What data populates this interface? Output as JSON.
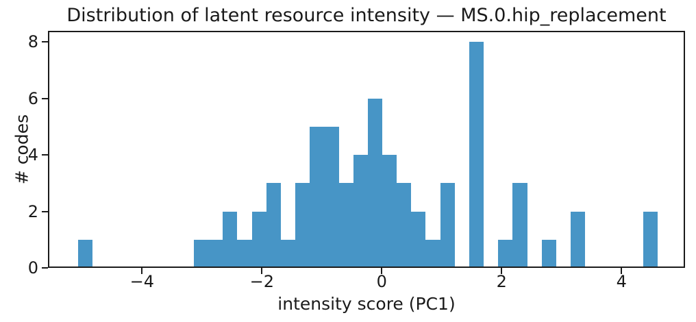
{
  "figure": {
    "background": "#ffffff",
    "text_color": "#1a1a1a"
  },
  "chart_data": {
    "type": "bar",
    "subtype": "histogram",
    "title": "Distribution of latent resource intensity — MS.0.hip_replacement",
    "xlabel": "intensity score (PC1)",
    "ylabel": "# codes",
    "bar_color": "#4795c6",
    "axis_color": "#1a1a1a",
    "grid": false,
    "legend": false,
    "xlim": [
      -5.57,
      5.06
    ],
    "ylim": [
      0,
      8.4
    ],
    "bin_start": -5.07,
    "bin_width": 0.2418,
    "counts": [
      1,
      0,
      0,
      0,
      0,
      0,
      0,
      0,
      1,
      1,
      2,
      1,
      2,
      3,
      1,
      3,
      5,
      5,
      3,
      4,
      6,
      4,
      3,
      2,
      1,
      3,
      0,
      8,
      0,
      1,
      3,
      0,
      1,
      0,
      2,
      0,
      0,
      0,
      0,
      2
    ],
    "x_ticks": [
      {
        "value": -4,
        "label": "−4"
      },
      {
        "value": -2,
        "label": "−2"
      },
      {
        "value": 0,
        "label": "0"
      },
      {
        "value": 2,
        "label": "2"
      },
      {
        "value": 4,
        "label": "4"
      }
    ],
    "y_ticks": [
      {
        "value": 0,
        "label": "0"
      },
      {
        "value": 2,
        "label": "2"
      },
      {
        "value": 4,
        "label": "4"
      },
      {
        "value": 6,
        "label": "6"
      },
      {
        "value": 8,
        "label": "8"
      }
    ]
  }
}
